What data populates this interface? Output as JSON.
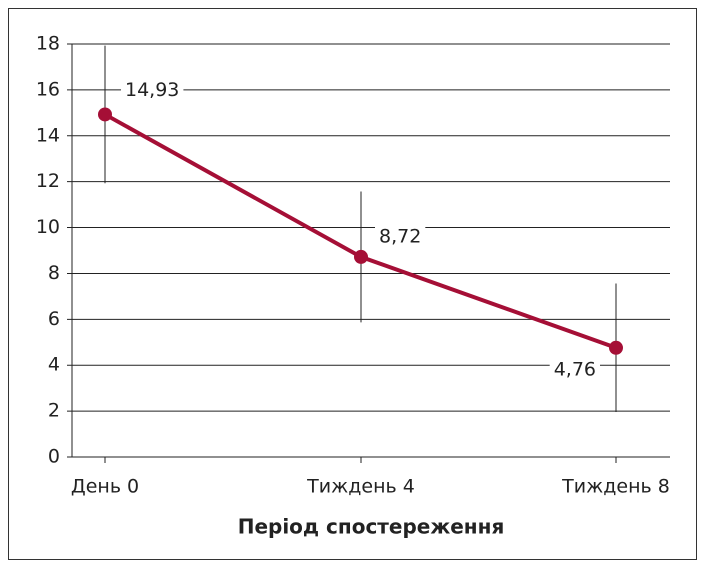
{
  "chart_data": {
    "type": "line",
    "x_label": "Період спостереження",
    "categories": [
      "День 0",
      "Тиждень 4",
      "Тиждень 8"
    ],
    "values": [
      14.93,
      8.72,
      4.76
    ],
    "value_labels": [
      "14,93",
      "8,72",
      "4,76"
    ],
    "errors": [
      3,
      2.85,
      2.8
    ],
    "color": "#a50f36",
    "ylim": [
      0,
      18
    ],
    "yticks": [
      0,
      2,
      4,
      6,
      8,
      10,
      12,
      14,
      16,
      18
    ],
    "grid": true
  }
}
